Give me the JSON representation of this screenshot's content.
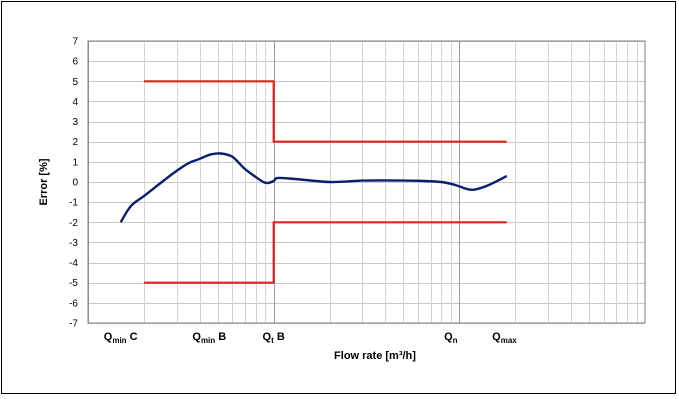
{
  "chart_data": {
    "type": "line",
    "xlabel": "Flow rate [m³/h]",
    "ylabel": "Error [%]",
    "x_scale": "log",
    "ylim": [
      -7,
      7
    ],
    "y_ticks": [
      7,
      6,
      5,
      4,
      3,
      2,
      1,
      0,
      -1,
      -2,
      -3,
      -4,
      -5,
      -6,
      -7
    ],
    "grid": true,
    "colors": {
      "limits": "#e0231b",
      "error_curve": "#0b1e6e"
    },
    "x_tick_labels": [
      {
        "id": "qmin_c",
        "main": "Q",
        "sub": "min",
        "suffix": " C"
      },
      {
        "id": "qmin_b",
        "main": "Q",
        "sub": "min",
        "suffix": " B"
      },
      {
        "id": "qt_b",
        "main": "Q",
        "sub": "t",
        "suffix": " B"
      },
      {
        "id": "qn",
        "main": "Q",
        "sub": "n",
        "suffix": ""
      },
      {
        "id": "qmax",
        "main": "Q",
        "sub": "max",
        "suffix": ""
      }
    ],
    "series": [
      {
        "id": "upper_limit",
        "points": [
          [
            0.2,
            5
          ],
          [
            1.0,
            5
          ],
          [
            1.0,
            2
          ],
          [
            18,
            2
          ]
        ]
      },
      {
        "id": "lower_limit",
        "points": [
          [
            0.2,
            -5
          ],
          [
            1.0,
            -5
          ],
          [
            1.0,
            -2
          ],
          [
            18,
            -2
          ]
        ]
      },
      {
        "id": "error_curve",
        "points": [
          [
            0.15,
            -2.0
          ],
          [
            0.17,
            -1.2
          ],
          [
            0.2,
            -0.7
          ],
          [
            0.25,
            0.0
          ],
          [
            0.3,
            0.55
          ],
          [
            0.35,
            0.95
          ],
          [
            0.4,
            1.15
          ],
          [
            0.45,
            1.35
          ],
          [
            0.5,
            1.42
          ],
          [
            0.55,
            1.38
          ],
          [
            0.6,
            1.25
          ],
          [
            0.65,
            0.95
          ],
          [
            0.7,
            0.65
          ],
          [
            0.8,
            0.25
          ],
          [
            0.88,
            0.0
          ],
          [
            0.93,
            -0.05
          ],
          [
            1.0,
            0.05
          ],
          [
            1.05,
            0.2
          ],
          [
            1.3,
            0.15
          ],
          [
            2.0,
            0.0
          ],
          [
            3.0,
            0.07
          ],
          [
            4.0,
            0.08
          ],
          [
            6.0,
            0.06
          ],
          [
            8.0,
            0.0
          ],
          [
            9.5,
            -0.15
          ],
          [
            11.0,
            -0.35
          ],
          [
            12.0,
            -0.38
          ],
          [
            14.0,
            -0.2
          ],
          [
            16.0,
            0.05
          ],
          [
            18.0,
            0.3
          ]
        ]
      }
    ]
  }
}
